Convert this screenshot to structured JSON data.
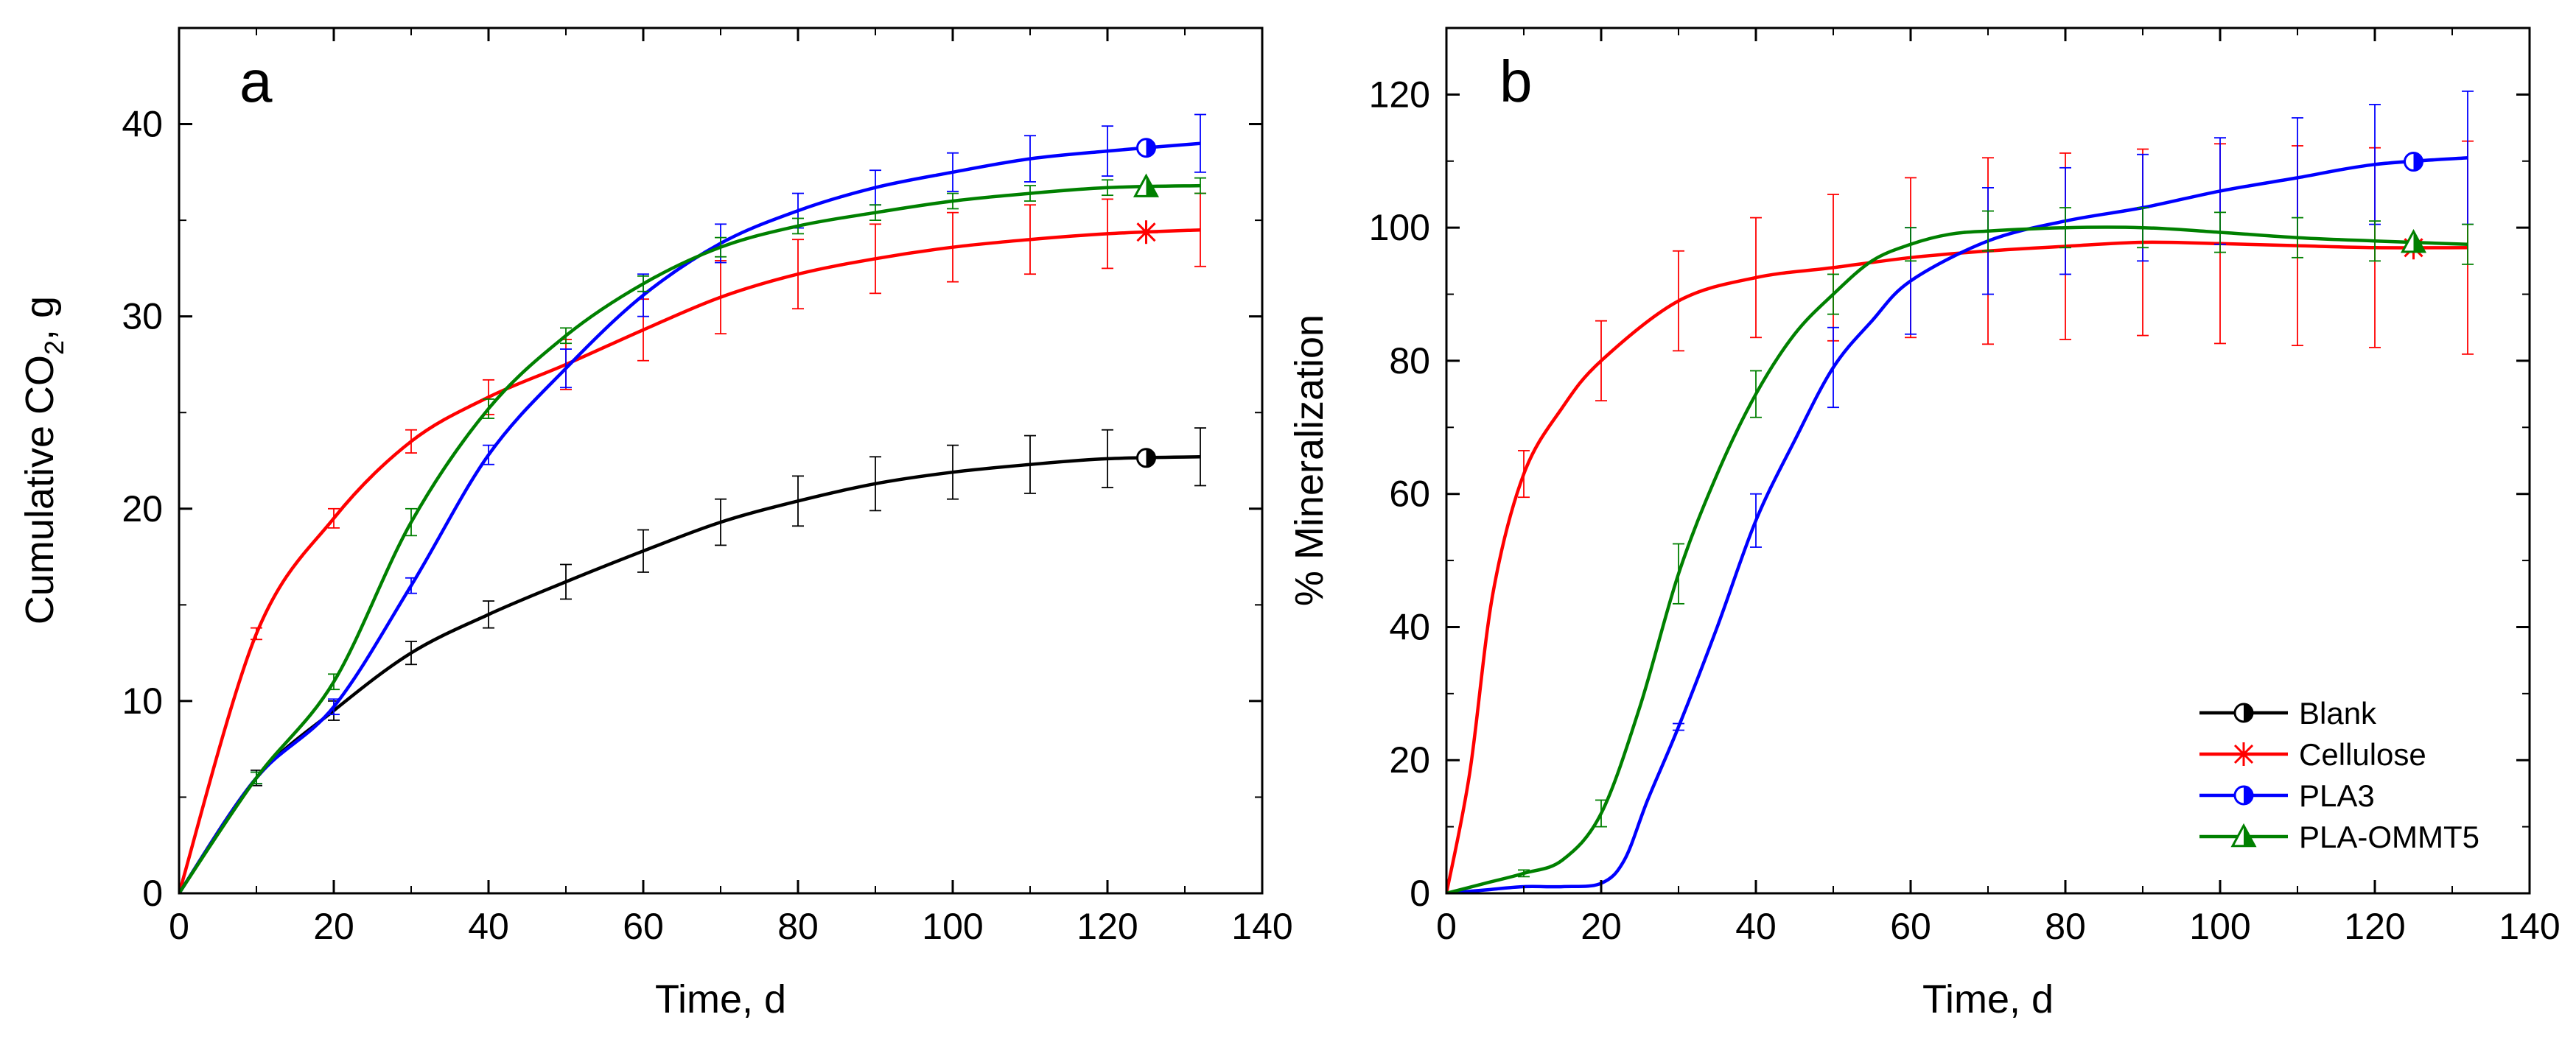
{
  "chart_data": [
    {
      "type": "line",
      "panel_label": "a",
      "xlabel": "Time, d",
      "ylabel_main": "Cumulative CO",
      "ylabel_sub": "2",
      "ylabel_tail": ", g",
      "xlim": [
        0,
        140
      ],
      "ylim": [
        0,
        45
      ],
      "xticks": [
        0,
        20,
        40,
        60,
        80,
        100,
        120,
        140
      ],
      "yticks": [
        0,
        10,
        20,
        30,
        40
      ],
      "grid": false,
      "series": [
        {
          "name": "Blank",
          "color": "#000000",
          "marker": "half-circle",
          "marker_x": 125,
          "x": [
            0,
            10,
            20,
            30,
            40,
            50,
            60,
            70,
            80,
            90,
            100,
            110,
            120,
            132
          ],
          "y": [
            0,
            6.0,
            9.5,
            12.5,
            14.5,
            16.2,
            17.8,
            19.3,
            20.4,
            21.3,
            21.9,
            22.3,
            22.6,
            22.7
          ],
          "err": [
            0,
            0.4,
            0.5,
            0.6,
            0.7,
            0.9,
            1.1,
            1.2,
            1.3,
            1.4,
            1.4,
            1.5,
            1.5,
            1.5
          ]
        },
        {
          "name": "Cellulose",
          "color": "#ff0000",
          "marker": "asterisk",
          "marker_x": 125,
          "x": [
            0,
            10,
            20,
            30,
            40,
            50,
            60,
            70,
            80,
            90,
            100,
            110,
            120,
            132
          ],
          "y": [
            0,
            13.5,
            19.5,
            23.5,
            25.8,
            27.5,
            29.3,
            31.0,
            32.2,
            33.0,
            33.6,
            34.0,
            34.3,
            34.5
          ],
          "err": [
            0,
            0.3,
            0.5,
            0.6,
            0.9,
            1.3,
            1.6,
            1.9,
            1.8,
            1.8,
            1.8,
            1.8,
            1.8,
            1.9
          ]
        },
        {
          "name": "PLA3",
          "color": "#0000ff",
          "marker": "half-circle-blue",
          "marker_x": 125,
          "x": [
            0,
            10,
            20,
            30,
            40,
            50,
            60,
            70,
            80,
            90,
            100,
            110,
            120,
            132
          ],
          "y": [
            0,
            6.0,
            9.7,
            16.0,
            22.8,
            27.3,
            31.1,
            33.8,
            35.5,
            36.7,
            37.5,
            38.2,
            38.6,
            39.0
          ],
          "err": [
            0,
            0.3,
            0.4,
            0.4,
            0.5,
            1.0,
            1.1,
            1.0,
            0.9,
            0.9,
            1.0,
            1.2,
            1.3,
            1.5
          ]
        },
        {
          "name": "PLA-OMMT5",
          "color": "#008000",
          "marker": "half-triangle",
          "marker_x": 125,
          "x": [
            0,
            10,
            20,
            30,
            40,
            50,
            60,
            70,
            80,
            90,
            100,
            110,
            120,
            132
          ],
          "y": [
            0,
            6.0,
            11.0,
            19.3,
            25.2,
            29.0,
            31.7,
            33.6,
            34.7,
            35.4,
            36.0,
            36.4,
            36.7,
            36.8
          ],
          "err": [
            0,
            0.3,
            0.4,
            0.7,
            0.5,
            0.4,
            0.4,
            0.5,
            0.4,
            0.4,
            0.4,
            0.4,
            0.4,
            0.4
          ]
        }
      ]
    },
    {
      "type": "line",
      "panel_label": "b",
      "xlabel": "Time, d",
      "ylabel": "% Mineralization",
      "xlim": [
        0,
        140
      ],
      "ylim": [
        0,
        130
      ],
      "xticks": [
        0,
        20,
        40,
        60,
        80,
        100,
        120,
        140
      ],
      "yticks": [
        0,
        20,
        40,
        60,
        80,
        100,
        120
      ],
      "grid": false,
      "legend": {
        "position": "bottom-right",
        "entries": [
          "Blank",
          "Cellulose",
          "PLA3",
          "PLA-OMMT5"
        ]
      },
      "series": [
        {
          "name": "Cellulose",
          "color": "#ff0000",
          "marker": "asterisk",
          "marker_x": 125,
          "x": [
            0,
            3,
            6,
            10,
            15,
            20,
            30,
            40,
            50,
            60,
            70,
            80,
            90,
            100,
            110,
            120,
            132
          ],
          "y": [
            0,
            18,
            45,
            63,
            73,
            80,
            89,
            92.5,
            94,
            95.5,
            96.5,
            97.2,
            97.8,
            97.6,
            97.3,
            97.0,
            97.0
          ],
          "err": [
            0,
            0,
            0,
            3.5,
            0,
            6,
            7.5,
            9,
            11,
            12,
            14,
            14,
            14,
            15,
            15,
            15,
            16
          ]
        },
        {
          "name": "PLA3",
          "color": "#0000ff",
          "marker": "half-circle-blue",
          "marker_x": 125,
          "x": [
            0,
            5,
            10,
            15,
            20,
            23,
            26,
            30,
            35,
            40,
            45,
            50,
            55,
            60,
            70,
            80,
            90,
            100,
            110,
            120,
            132
          ],
          "y": [
            0,
            0.5,
            1,
            1,
            1.5,
            5,
            14,
            25,
            40,
            56,
            68,
            79,
            86,
            92,
            98,
            101,
            103,
            105.5,
            107.5,
            109.5,
            110.5
          ],
          "err": [
            0,
            0,
            0,
            0,
            0,
            0,
            0,
            0.5,
            0,
            4,
            0,
            6,
            0,
            8,
            8,
            8,
            8,
            8,
            9,
            9,
            10
          ]
        },
        {
          "name": "PLA-OMMT5",
          "color": "#008000",
          "marker": "half-triangle",
          "marker_x": 125,
          "x": [
            0,
            5,
            10,
            15,
            20,
            25,
            30,
            35,
            40,
            45,
            50,
            55,
            60,
            65,
            70,
            80,
            90,
            100,
            110,
            120,
            132
          ],
          "y": [
            0,
            1.5,
            3,
            5,
            12,
            28,
            48,
            63,
            75,
            84,
            90,
            95,
            97.5,
            99,
            99.5,
            100,
            100,
            99.3,
            98.5,
            98,
            97.5
          ],
          "err": [
            0,
            0,
            0.5,
            0,
            2,
            0,
            4.5,
            0,
            3.5,
            0,
            3,
            0,
            2.5,
            0,
            3,
            3,
            3,
            3,
            3,
            3,
            3
          ]
        }
      ]
    }
  ]
}
